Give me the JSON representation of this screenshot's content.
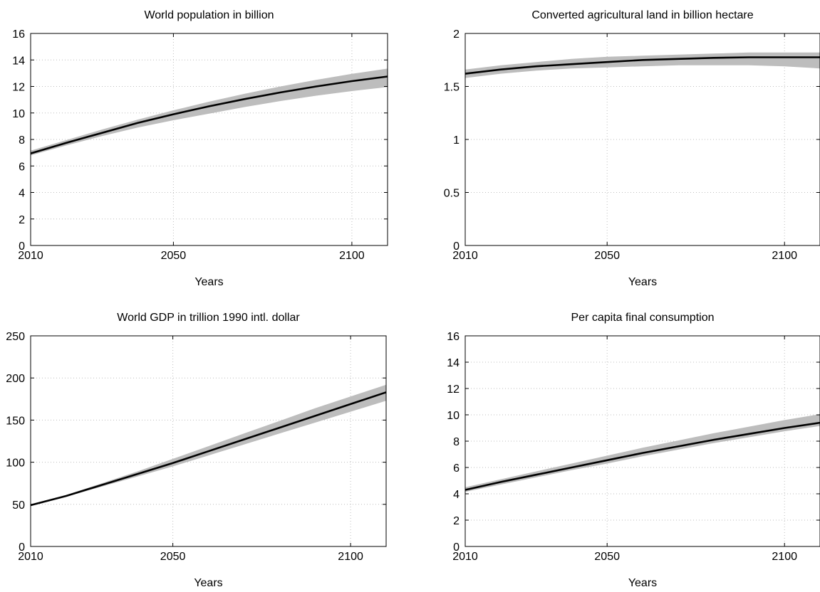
{
  "style": {
    "band_color": "#bdbdbd",
    "line_color": "#000000",
    "grid_color": "#bdbdbd"
  },
  "chart_data": [
    {
      "id": "population",
      "type": "area",
      "title": "World population in billion",
      "xlabel": "Years",
      "ylabel": "",
      "xlim": [
        2010,
        2110
      ],
      "ylim": [
        0,
        16
      ],
      "xticks": [
        2010,
        2050,
        2100
      ],
      "xtick_labels": [
        "2010",
        "2050",
        "2100"
      ],
      "yticks": [
        0,
        2,
        4,
        6,
        8,
        10,
        12,
        14,
        16
      ],
      "ytick_labels": [
        "0",
        "2",
        "4",
        "6",
        "8",
        "10",
        "12",
        "14",
        "16"
      ],
      "grid": true,
      "x": [
        2010,
        2020,
        2030,
        2040,
        2050,
        2060,
        2070,
        2080,
        2090,
        2100,
        2110
      ],
      "series": [
        {
          "role": "upper",
          "values": [
            7.15,
            7.95,
            8.75,
            9.5,
            10.2,
            10.85,
            11.45,
            12.0,
            12.5,
            12.95,
            13.35
          ]
        },
        {
          "role": "median",
          "values": [
            6.95,
            7.75,
            8.5,
            9.25,
            9.9,
            10.5,
            11.05,
            11.55,
            12.0,
            12.4,
            12.75
          ]
        },
        {
          "role": "lower",
          "values": [
            6.8,
            7.55,
            8.25,
            8.9,
            9.45,
            9.95,
            10.45,
            10.9,
            11.3,
            11.65,
            11.95
          ]
        }
      ]
    },
    {
      "id": "land",
      "type": "area",
      "title": "Converted agricultural land in billion hectare",
      "xlabel": "Years",
      "ylabel": "",
      "xlim": [
        2010,
        2110
      ],
      "ylim": [
        0,
        2
      ],
      "xticks": [
        2010,
        2050,
        2100
      ],
      "xtick_labels": [
        "2010",
        "2050",
        "2100"
      ],
      "yticks": [
        0,
        0.5,
        1,
        1.5,
        2
      ],
      "ytick_labels": [
        "0",
        "0.5",
        "1",
        "1.5",
        "2"
      ],
      "grid": true,
      "x": [
        2010,
        2020,
        2030,
        2040,
        2050,
        2060,
        2070,
        2080,
        2090,
        2100,
        2110
      ],
      "series": [
        {
          "role": "upper",
          "values": [
            1.66,
            1.7,
            1.73,
            1.76,
            1.78,
            1.79,
            1.8,
            1.81,
            1.82,
            1.82,
            1.82
          ]
        },
        {
          "role": "median",
          "values": [
            1.62,
            1.66,
            1.69,
            1.71,
            1.73,
            1.75,
            1.76,
            1.77,
            1.775,
            1.775,
            1.775
          ]
        },
        {
          "role": "lower",
          "values": [
            1.58,
            1.62,
            1.65,
            1.67,
            1.68,
            1.69,
            1.7,
            1.7,
            1.7,
            1.69,
            1.67
          ]
        }
      ]
    },
    {
      "id": "gdp",
      "type": "area",
      "title": "World GDP in trillion 1990 intl. dollar",
      "xlabel": "Years",
      "ylabel": "",
      "xlim": [
        2010,
        2110
      ],
      "ylim": [
        0,
        250
      ],
      "xticks": [
        2010,
        2050,
        2100
      ],
      "xtick_labels": [
        "2010",
        "2050",
        "2100"
      ],
      "yticks": [
        0,
        50,
        100,
        150,
        200,
        250
      ],
      "ytick_labels": [
        "0",
        "50",
        "100",
        "150",
        "200",
        "250"
      ],
      "grid": true,
      "x": [
        2010,
        2020,
        2030,
        2040,
        2050,
        2060,
        2070,
        2080,
        2090,
        2100,
        2110
      ],
      "series": [
        {
          "role": "upper",
          "values": [
            50,
            61,
            75,
            89,
            104,
            119,
            134,
            149,
            164,
            178,
            192
          ]
        },
        {
          "role": "median",
          "values": [
            49,
            60,
            73,
            86,
            99,
            113,
            127,
            141,
            155,
            169,
            183
          ]
        },
        {
          "role": "lower",
          "values": [
            48,
            59,
            71,
            83,
            95,
            108,
            121,
            134,
            147,
            160,
            173
          ]
        }
      ]
    },
    {
      "id": "consumption",
      "type": "area",
      "title": "Per capita final consumption",
      "xlabel": "Years",
      "ylabel": "",
      "xlim": [
        2010,
        2110
      ],
      "ylim": [
        0,
        16
      ],
      "xticks": [
        2010,
        2050,
        2100
      ],
      "xtick_labels": [
        "2010",
        "2050",
        "2100"
      ],
      "yticks": [
        0,
        2,
        4,
        6,
        8,
        10,
        12,
        14,
        16
      ],
      "ytick_labels": [
        "0",
        "2",
        "4",
        "6",
        "8",
        "10",
        "12",
        "14",
        "16"
      ],
      "grid": true,
      "x": [
        2010,
        2020,
        2030,
        2040,
        2050,
        2060,
        2070,
        2080,
        2090,
        2100,
        2110
      ],
      "series": [
        {
          "role": "upper",
          "values": [
            4.5,
            5.1,
            5.7,
            6.3,
            6.9,
            7.5,
            8.05,
            8.6,
            9.1,
            9.6,
            10.05
          ]
        },
        {
          "role": "median",
          "values": [
            4.3,
            4.9,
            5.45,
            6.0,
            6.55,
            7.1,
            7.6,
            8.1,
            8.55,
            9.0,
            9.4
          ]
        },
        {
          "role": "lower",
          "values": [
            4.15,
            4.7,
            5.25,
            5.8,
            6.3,
            6.85,
            7.35,
            7.85,
            8.3,
            8.75,
            9.15
          ]
        }
      ]
    }
  ]
}
